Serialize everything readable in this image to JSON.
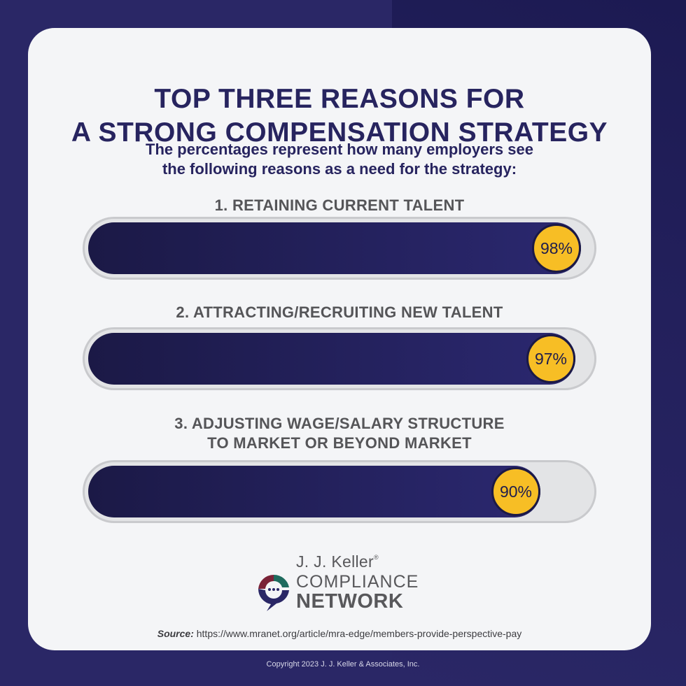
{
  "title": {
    "line1": "TOP THREE REASONS FOR",
    "line2": "A STRONG COMPENSATION STRATEGY"
  },
  "subtitle": {
    "line1": "The percentages represent how many employers see",
    "line2": "the following reasons as a need for the strategy:"
  },
  "chart_data": {
    "type": "bar",
    "orientation": "horizontal",
    "categories": [
      "1. RETAINING CURRENT TALENT",
      "2. ATTRACTING/RECRUITING NEW TALENT",
      "3. ADJUSTING WAGE/SALARY STRUCTURE TO MARKET OR BEYOND MARKET"
    ],
    "label_lines": [
      [
        "1. RETAINING CURRENT TALENT"
      ],
      [
        "2. ATTRACTING/RECRUITING NEW TALENT"
      ],
      [
        "3. ADJUSTING WAGE/SALARY STRUCTURE",
        "TO MARKET OR BEYOND MARKET"
      ]
    ],
    "values": [
      98,
      97,
      90
    ],
    "value_labels": [
      "98%",
      "97%",
      "90%"
    ],
    "xlim": [
      0,
      100
    ],
    "title": "TOP THREE REASONS FOR A STRONG COMPENSATION STRATEGY",
    "colors": {
      "fill": "#1f1d52",
      "badge": "#f7be25",
      "track": "#e3e4e6"
    }
  },
  "logo": {
    "top": "J. J. Keller",
    "registered": "®",
    "mid": "COMPLIANCE",
    "bottom": "NETWORK"
  },
  "source": {
    "label": "Source:",
    "url": "https://www.mranet.org/article/mra-edge/members-provide-perspective-pay"
  },
  "copyright": "Copyright 2023 J. J. Keller & Associates, Inc."
}
